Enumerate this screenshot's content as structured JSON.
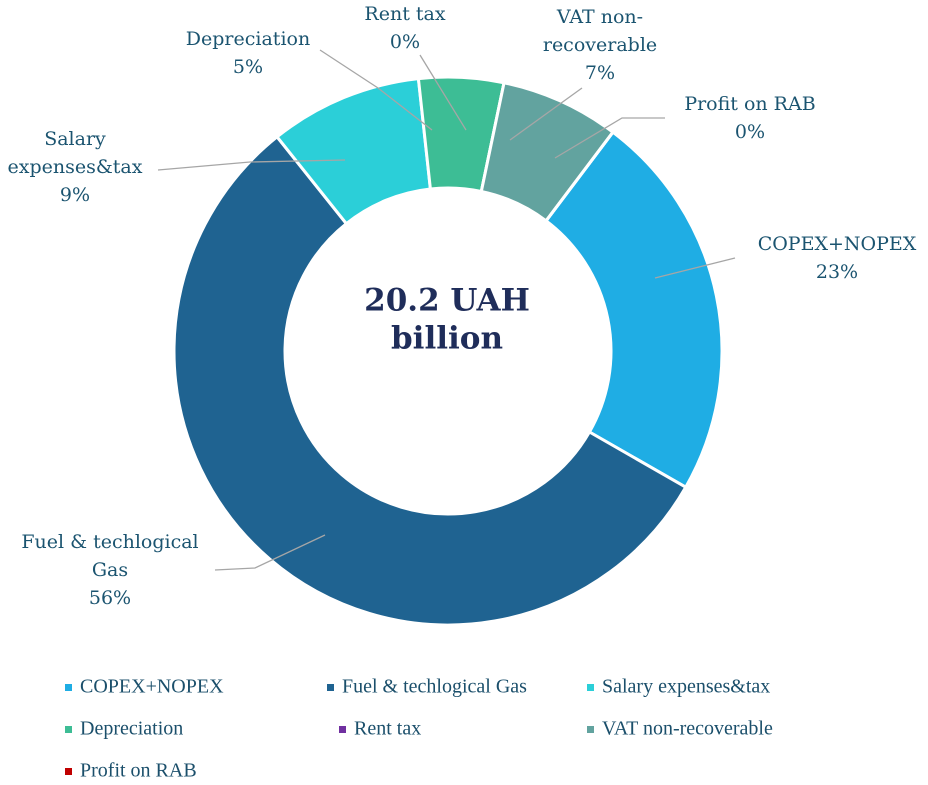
{
  "chart_data": {
    "type": "donut",
    "center_text": [
      "20.2 UAH",
      "billion"
    ],
    "categories": [
      "COPEX+NOPEX",
      "Fuel & techlogical Gas",
      "Salary expenses&tax",
      "Depreciation",
      "Rent tax",
      "VAT non-recoverable",
      "Profit on RAB"
    ],
    "values": [
      23,
      56,
      9,
      5,
      0,
      7,
      0
    ],
    "value_labels": [
      "23%",
      "56%",
      "9%",
      "5%",
      "0%",
      "7%",
      "0%"
    ],
    "colors": [
      "#1fade4",
      "#1f6391",
      "#2bcfd8",
      "#3dbd95",
      "#7030a0",
      "#62a39f",
      "#c00000"
    ],
    "legend": "bottom"
  }
}
